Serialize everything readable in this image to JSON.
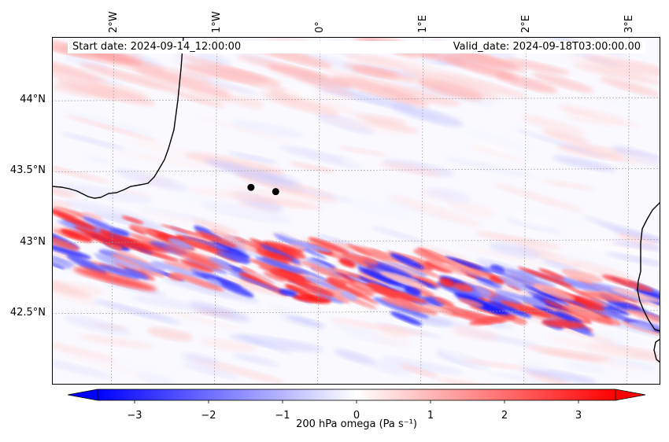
{
  "chart_data": {
    "type": "heatmap",
    "title": "",
    "start_date": "Start date: 2024-09-14_12:00:00",
    "valid_date": "Valid_date: 2024-09-18T03:00:00.00",
    "variable": "200 hPa omega",
    "units": "Pa s⁻¹",
    "colorbar_label": "200 hPa omega (Pa s⁻¹)",
    "colormap": "bwr",
    "color_low": "#0000ff",
    "color_mid": "#ffffff",
    "color_high": "#ff0000",
    "vmin": -3.5,
    "vmax": 3.5,
    "colorbar_extend": "both",
    "colorbar_ticks": [
      -3,
      -2,
      -1,
      0,
      1,
      2,
      3
    ],
    "colorbar_tick_labels": [
      "−3",
      "−2",
      "−1",
      "0",
      "1",
      "2",
      "3"
    ],
    "lon_range": [
      -2.6,
      3.3
    ],
    "lat_range": [
      42.0,
      44.45
    ],
    "lon_ticks": [
      -2,
      -1,
      0,
      1,
      2,
      3
    ],
    "lon_tick_labels": [
      "2°W",
      "1°W",
      "0°",
      "1°E",
      "2°E",
      "3°E"
    ],
    "lat_ticks": [
      42.5,
      43.0,
      43.5,
      44.0
    ],
    "lat_tick_labels": [
      "42.5°N",
      "43°N",
      "43.5°N",
      "44°N"
    ],
    "gridlines": true,
    "points": [
      {
        "lon": -0.67,
        "lat": 43.39
      },
      {
        "lon": -0.43,
        "lat": 43.36
      }
    ]
  }
}
